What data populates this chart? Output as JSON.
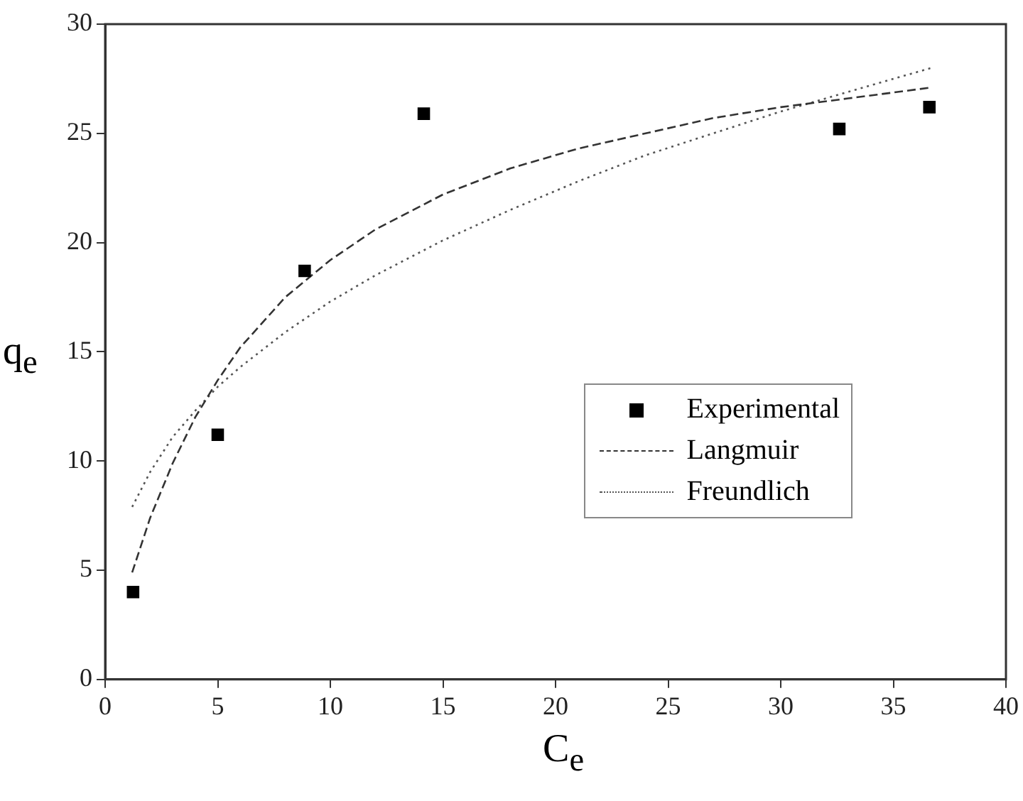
{
  "chart_data": {
    "type": "scatter",
    "xlabel": "C$_{e}$",
    "ylabel": "q$_{e}$",
    "xlim": [
      0,
      40
    ],
    "ylim": [
      0,
      30
    ],
    "xticks": [
      0,
      5,
      10,
      15,
      20,
      25,
      30,
      35,
      40
    ],
    "yticks": [
      0,
      5,
      10,
      15,
      20,
      25,
      30
    ],
    "legend": "right",
    "series": [
      {
        "name": "Experimental",
        "marker": "square",
        "color": "#000000",
        "x": [
          1.24,
          5.0,
          8.86,
          14.15,
          32.6,
          36.6
        ],
        "values": [
          4.0,
          11.2,
          18.7,
          25.9,
          25.2,
          26.2
        ]
      },
      {
        "name": "Langmuir",
        "type": "line",
        "line_style": "dashed",
        "marker": "none",
        "color": "#333333",
        "x": [
          1.2,
          2,
          3,
          4,
          5,
          6,
          8,
          10,
          12,
          15,
          18,
          21,
          24,
          27,
          30,
          33,
          36.7
        ],
        "values": [
          4.9,
          7.4,
          9.9,
          12.0,
          13.7,
          15.2,
          17.5,
          19.2,
          20.6,
          22.2,
          23.4,
          24.3,
          25.0,
          25.7,
          26.2,
          26.6,
          27.1
        ]
      },
      {
        "name": "Freundlich",
        "type": "line",
        "line_style": "dotted",
        "marker": "none",
        "color": "#555555",
        "x": [
          1.2,
          2,
          3,
          4,
          5,
          6,
          8,
          10,
          12,
          15,
          18,
          21,
          24,
          27,
          30,
          33,
          36.7
        ],
        "values": [
          7.9,
          9.5,
          11.1,
          12.3,
          13.4,
          14.3,
          15.9,
          17.3,
          18.5,
          20.1,
          21.5,
          22.8,
          24.0,
          25.0,
          26.0,
          26.9,
          28.0
        ]
      }
    ]
  }
}
